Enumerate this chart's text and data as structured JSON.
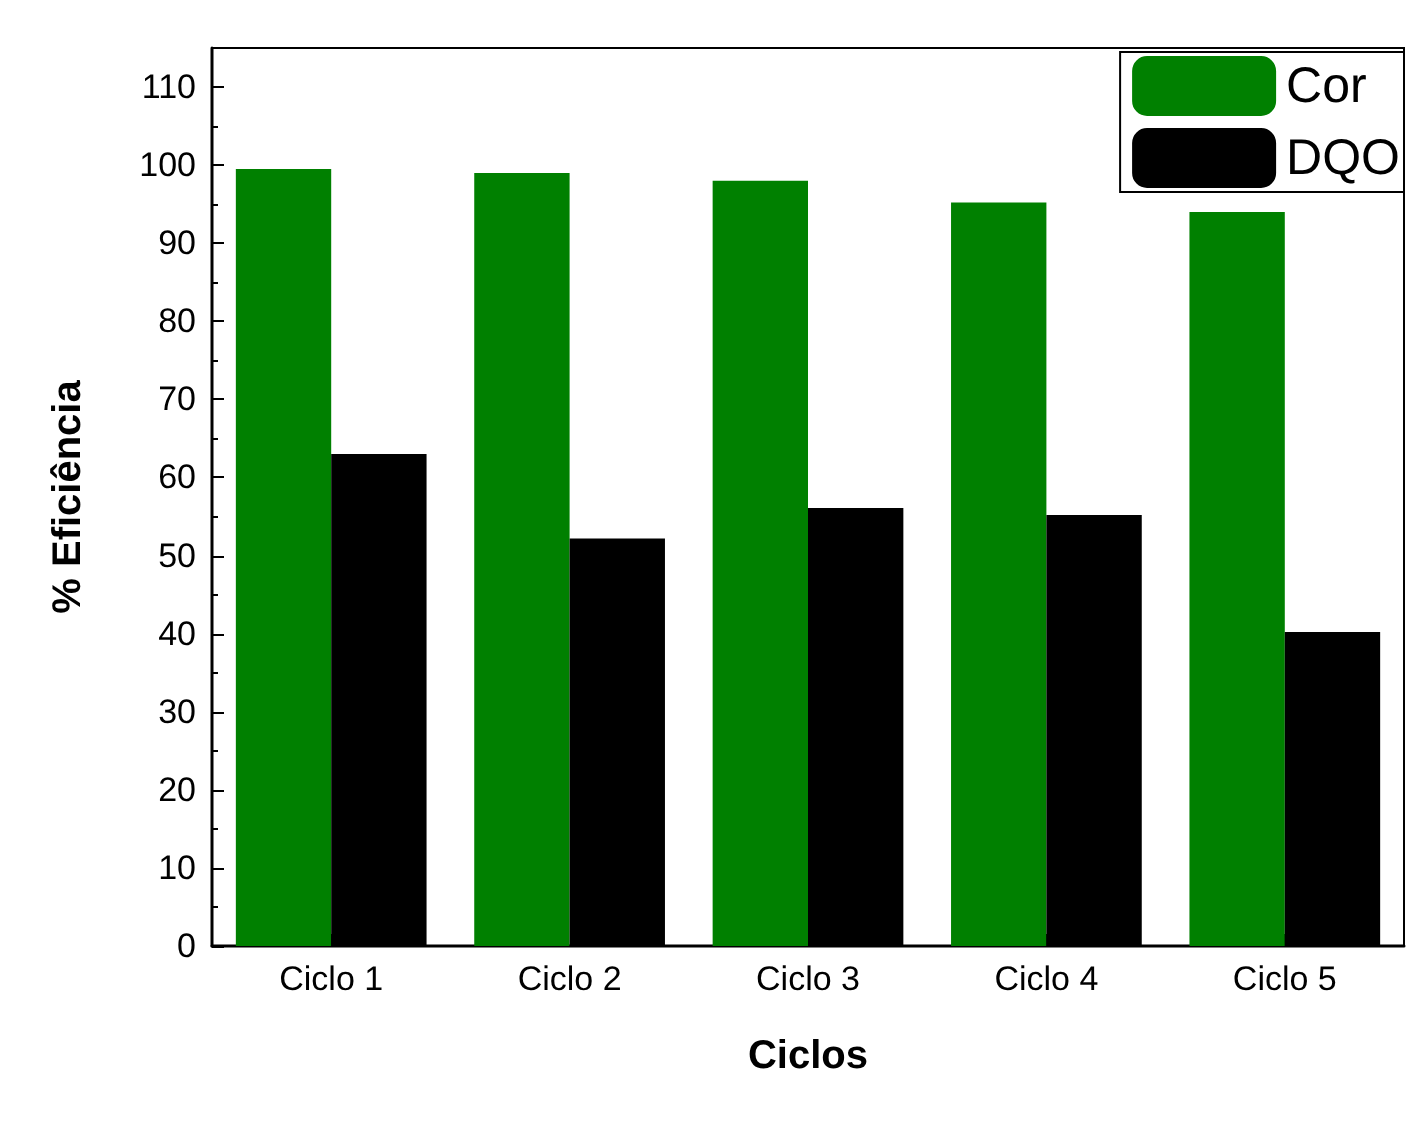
{
  "chart_data": {
    "type": "bar",
    "xlabel": "Ciclos",
    "ylabel": "% Eficiência",
    "categories": [
      "Ciclo 1",
      "Ciclo 2",
      "Ciclo 3",
      "Ciclo 4",
      "Ciclo 5"
    ],
    "series": [
      {
        "name": "Cor",
        "color": "#008000",
        "values": [
          99.5,
          99,
          98,
          95.2,
          94
        ]
      },
      {
        "name": "DQO",
        "color": "#000000",
        "values": [
          63,
          52.2,
          56.1,
          55.2,
          40.2
        ]
      }
    ],
    "ylim": [
      0,
      115
    ],
    "yticks": [
      0,
      10,
      20,
      30,
      40,
      50,
      60,
      70,
      80,
      90,
      100,
      110
    ],
    "legend": "top right",
    "grid": false
  }
}
